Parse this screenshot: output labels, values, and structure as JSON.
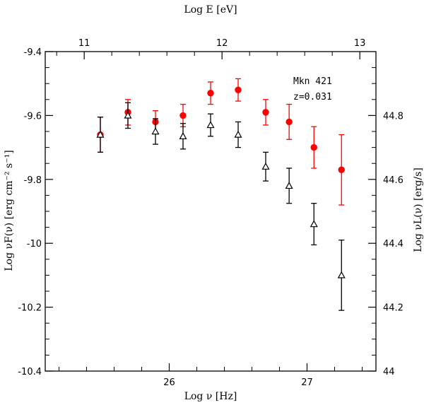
{
  "chart_data": {
    "type": "scatter",
    "title": "",
    "xlabel": "Log ν [Hz]",
    "ylabel": "Log νF(ν) [erg cm⁻² s⁻¹]",
    "top_xlabel": "Log E [eV]",
    "right_ylabel": "Log νL(ν)  [erg/s]",
    "xlim": [
      25.1,
      27.5
    ],
    "ylim": [
      -10.4,
      -9.4
    ],
    "x_ticks": [
      26,
      27
    ],
    "x_tick_labels": [
      "26",
      "27"
    ],
    "y_ticks": [
      -10.4,
      -10.2,
      -10.0,
      -9.8,
      -9.6,
      -9.4
    ],
    "y_tick_labels": [
      "-10.4",
      "-10.2",
      "-10",
      "-9.8",
      "-9.6",
      "-9.4"
    ],
    "top_x_ticks": [
      11,
      12,
      13
    ],
    "top_x_tick_labels": [
      "11",
      "12",
      "13"
    ],
    "top_x_offset": 14.383,
    "right_y_ticks": [
      44.0,
      44.2,
      44.4,
      44.6,
      44.8
    ],
    "right_y_tick_labels": [
      "44",
      "44.2",
      "44.4",
      "44.6",
      "44.8"
    ],
    "right_y_offset": 54.4,
    "grid": false,
    "annotations": [
      "Mkn 421",
      "z=0.031"
    ],
    "series": [
      {
        "name": "red filled circles",
        "color": "#ff0000",
        "marker": "circle",
        "x": [
          25.5,
          25.7,
          25.9,
          26.1,
          26.3,
          26.5,
          26.7,
          26.87,
          27.05,
          27.25
        ],
        "y": [
          -9.66,
          -9.59,
          -9.62,
          -9.6,
          -9.53,
          -9.52,
          -9.59,
          -9.62,
          -9.7,
          -9.77
        ],
        "err": [
          0.055,
          0.04,
          0.035,
          0.035,
          0.035,
          0.035,
          0.04,
          0.055,
          0.065,
          0.11
        ]
      },
      {
        "name": "black open triangles",
        "color": "#000000",
        "marker": "triangle",
        "x": [
          25.5,
          25.7,
          25.9,
          26.1,
          26.3,
          26.5,
          26.7,
          26.87,
          27.05,
          27.25
        ],
        "y": [
          -9.66,
          -9.6,
          -9.65,
          -9.665,
          -9.63,
          -9.66,
          -9.76,
          -9.82,
          -9.94,
          -10.1
        ],
        "err": [
          0.055,
          0.04,
          0.04,
          0.04,
          0.035,
          0.04,
          0.045,
          0.055,
          0.065,
          0.11
        ]
      }
    ]
  }
}
